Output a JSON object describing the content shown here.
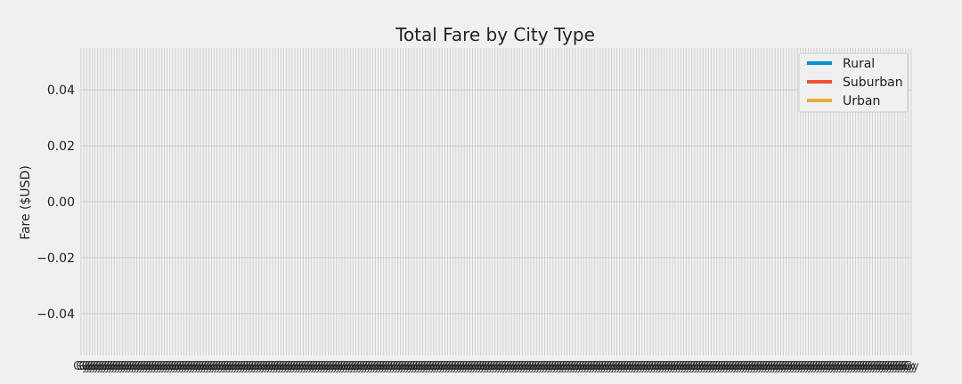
{
  "chart_data": {
    "type": "line",
    "title": "Total Fare by City Type",
    "xlabel": "",
    "ylabel": "Fare ($USD)",
    "ylim": [
      -0.055,
      0.055
    ],
    "yticks": [
      "-0.04",
      "-0.02",
      "0.00",
      "0.02",
      "0.04"
    ],
    "ytick_values": [
      -0.04,
      -0.02,
      0.0,
      0.02,
      0.04
    ],
    "x_tick_count": 300,
    "x_tick_labels_legible": false,
    "grid": true,
    "legend_position": "top-right",
    "series": [
      {
        "name": "Rural",
        "color": "#008fd5",
        "values": []
      },
      {
        "name": "Suburban",
        "color": "#fc4f30",
        "values": []
      },
      {
        "name": "Urban",
        "color": "#e5ae38",
        "values": []
      }
    ],
    "colors": {
      "background": "#f0f0f0",
      "grid": "#cbcbcb",
      "text": "#222222"
    }
  }
}
